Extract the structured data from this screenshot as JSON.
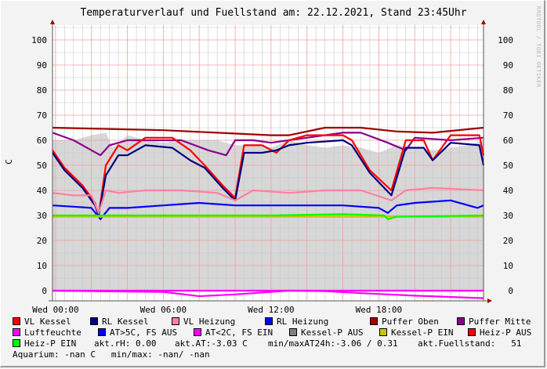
{
  "chart_data": {
    "type": "line",
    "title": "Temperaturverlauf und Fuellstand am: 22.12.2021, Stand 23:45Uhr",
    "watermark": "RRDTOOL / TOBI OETIKER",
    "ylabel": "C",
    "ylim": [
      -4,
      106
    ],
    "xlim_hours": [
      -0.17,
      23.83
    ],
    "grid": true,
    "y_ticks": [
      0,
      10,
      20,
      30,
      40,
      50,
      60,
      70,
      80,
      90,
      100
    ],
    "x_ticks": [
      {
        "h": 0,
        "label": "Wed 00:00"
      },
      {
        "h": 6,
        "label": "Wed 06:00"
      },
      {
        "h": 12,
        "label": "Wed 12:00"
      },
      {
        "h": 18,
        "label": "Wed 18:00"
      }
    ],
    "area": {
      "name": "Kessel-P AUS",
      "color": "#d7d7d7",
      "x": [
        -0.17,
        1,
        2,
        2.8,
        3.2,
        4,
        5,
        6,
        7,
        8,
        9,
        10,
        11,
        12,
        13,
        14,
        15,
        16,
        17,
        18,
        19,
        20,
        21,
        22,
        23,
        23.83
      ],
      "y": [
        60,
        60,
        62,
        63,
        57,
        62,
        60,
        59,
        60,
        60,
        60,
        58,
        58,
        57,
        60,
        58,
        57,
        58,
        57,
        55,
        58,
        57,
        56,
        57,
        58,
        60
      ]
    },
    "series": [
      {
        "name": "Puffer Oben",
        "color": "#a00000",
        "x": [
          -0.17,
          3,
          6,
          9,
          12,
          13,
          15,
          17,
          19,
          21,
          23.83
        ],
        "y": [
          65,
          64.5,
          64,
          63,
          62,
          62,
          65,
          65,
          63.5,
          63,
          65
        ]
      },
      {
        "name": "Puffer Mitte",
        "color": "#8b008b",
        "x": [
          -0.17,
          1,
          2,
          2.5,
          3,
          4,
          6,
          7,
          8.5,
          9.5,
          10,
          11,
          12,
          14,
          16,
          17,
          18.5,
          19.5,
          20,
          22,
          23.83
        ],
        "y": [
          63,
          60,
          56,
          54,
          58,
          60,
          60,
          60,
          56,
          54,
          60,
          60,
          59,
          61,
          63,
          63,
          59,
          56,
          61,
          60,
          61
        ]
      },
      {
        "name": "VL Kessel",
        "color": "#ff0000",
        "x": [
          -0.17,
          0.5,
          1.5,
          2.2,
          2.4,
          2.8,
          3.5,
          4,
          5,
          6.5,
          7.5,
          8.3,
          9.3,
          10,
          10.5,
          11.5,
          12.3,
          13,
          14,
          16,
          16.5,
          17.5,
          18.7,
          19.5,
          20.5,
          21,
          22,
          23.6,
          23.83
        ],
        "y": [
          56,
          49,
          42,
          35,
          30,
          50,
          58,
          56,
          61,
          61,
          56,
          50,
          42,
          37,
          58,
          58,
          55,
          60,
          62,
          62,
          60,
          48,
          40,
          60,
          60,
          52,
          62,
          62,
          54
        ]
      },
      {
        "name": "RL Kessel",
        "color": "#000080",
        "x": [
          -0.17,
          0.5,
          1.5,
          2.2,
          2.4,
          2.8,
          3.5,
          4,
          5,
          6.5,
          7.5,
          8.3,
          9.3,
          10,
          10.5,
          11.5,
          12.3,
          13,
          14,
          16,
          16.5,
          17.5,
          18.7,
          19.5,
          20.5,
          21,
          22,
          23.6,
          23.83
        ],
        "y": [
          55,
          48,
          41,
          34,
          30,
          46,
          54,
          54,
          58,
          57,
          52,
          49,
          41,
          36,
          55,
          55,
          56,
          58,
          59,
          60,
          58,
          47,
          38,
          57,
          57,
          52,
          59,
          58,
          50
        ]
      },
      {
        "name": "VL Heizung",
        "color": "#ff80a0",
        "x": [
          -0.17,
          1,
          2,
          2.4,
          2.8,
          3.5,
          5,
          7,
          9,
          10,
          11,
          13,
          15,
          17,
          18.7,
          19.5,
          21,
          23.83
        ],
        "y": [
          39,
          38,
          38,
          31,
          40,
          39,
          40,
          40,
          39,
          36,
          40,
          39,
          40,
          40,
          36,
          40,
          41,
          40
        ]
      },
      {
        "name": "RL Heizung",
        "color": "#0000ff",
        "x": [
          -0.17,
          1,
          2,
          2.5,
          3,
          4,
          6,
          8,
          10,
          12,
          14,
          16,
          18,
          18.5,
          19,
          20,
          22,
          23.5,
          23.83
        ],
        "y": [
          34,
          33.5,
          33,
          28.5,
          33,
          33,
          34,
          35,
          34,
          34,
          34,
          34,
          33,
          31,
          34,
          35,
          36,
          33,
          34
        ]
      },
      {
        "name": "Kessel-P EIN",
        "color": "#c8c800",
        "x": [
          -0.17,
          23.83
        ],
        "y": [
          29.5,
          29.5
        ]
      },
      {
        "name": "Heiz-P EIN",
        "color": "#00ff00",
        "x": [
          -0.17,
          6,
          12,
          16,
          18.3,
          18.5,
          19,
          23.83
        ],
        "y": [
          30,
          30,
          30,
          30.5,
          30,
          28.5,
          29.5,
          30
        ]
      },
      {
        "name": "Luftfeuchte",
        "color": "#ff00ff",
        "x": [
          -0.17,
          23.83
        ],
        "y": [
          0,
          0
        ]
      },
      {
        "name": "AT",
        "color": "#ff00ff",
        "x": [
          -0.17,
          3,
          6,
          8,
          10,
          13,
          15,
          17,
          20,
          23.83
        ],
        "y": [
          0,
          -0.3,
          -0.5,
          -2.2,
          -1.5,
          0,
          -0.2,
          -1,
          -2,
          -3
        ]
      }
    ]
  },
  "legend": [
    {
      "label": "VL Kessel",
      "color": "#ff0000"
    },
    {
      "label": "RL Kessel",
      "color": "#000080"
    },
    {
      "label": "VL Heizung",
      "color": "#ff80a0"
    },
    {
      "label": "RL Heizung",
      "color": "#0000ff"
    },
    {
      "label": "Puffer Oben",
      "color": "#a00000"
    },
    {
      "label": "Puffer Mitte",
      "color": "#8b008b"
    },
    {
      "label": "Luftfeuchte",
      "color": "#ff00ff"
    },
    {
      "label": "AT>5C, FS AUS",
      "color": "#0000ff"
    },
    {
      "label": "AT<2C, FS EIN",
      "color": "#ff00ff"
    },
    {
      "label": "Kessel-P AUS",
      "color": "#808080"
    },
    {
      "label": "Kessel-P EIN",
      "color": "#c8c800"
    },
    {
      "label": "Heiz-P AUS",
      "color": "#ff0000"
    },
    {
      "label": "Heiz-P EIN",
      "color": "#00ff00"
    }
  ],
  "stats": {
    "rh": "akt.rH: 0.00",
    "at": "akt.AT:-3.03 C",
    "minmax": "min/maxAT24h:-3.06 / 0.31",
    "fuell": "akt.Fuellstand:   51",
    "aquarium": "Aquarium: -nan C   min/max: -nan/ -nan"
  }
}
